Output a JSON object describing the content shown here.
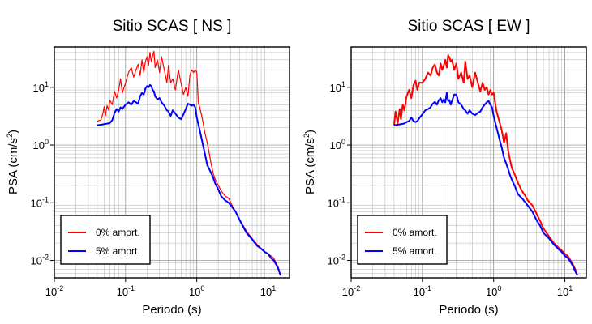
{
  "colors": {
    "series_0": "#ff0000",
    "series_5": "#0000ff",
    "grid": "#808080",
    "frame": "#000000"
  },
  "chart_data": [
    {
      "type": "line",
      "title": "Sitio SCAS [ NS ]",
      "xlabel": "Periodo (s)",
      "ylabel_main": "PSA (cm/s",
      "ylabel_exp": "2",
      "ylabel_close": ")",
      "xscale": "log",
      "yscale": "log",
      "xlim": [
        0.01,
        20
      ],
      "ylim": [
        0.005,
        50
      ],
      "grid": true,
      "xticks": [
        {
          "base": "10",
          "exp": "-2",
          "v": 0.01
        },
        {
          "base": "10",
          "exp": "-1",
          "v": 0.1
        },
        {
          "base": "10",
          "exp": "0",
          "v": 1
        },
        {
          "base": "10",
          "exp": "1",
          "v": 10
        }
      ],
      "yticks": [
        {
          "base": "10",
          "exp": "-2",
          "v": 0.01
        },
        {
          "base": "10",
          "exp": "-1",
          "v": 0.1
        },
        {
          "base": "10",
          "exp": "0",
          "v": 1
        },
        {
          "base": "10",
          "exp": "1",
          "v": 10
        }
      ],
      "legend_position": "bottom-left",
      "series": [
        {
          "name": "0% amort.",
          "color": "#ff0000",
          "width": 1.2,
          "x": [
            0.04,
            0.045,
            0.048,
            0.05,
            0.052,
            0.055,
            0.058,
            0.06,
            0.065,
            0.07,
            0.075,
            0.08,
            0.085,
            0.09,
            0.1,
            0.11,
            0.12,
            0.13,
            0.14,
            0.15,
            0.16,
            0.17,
            0.18,
            0.19,
            0.2,
            0.21,
            0.22,
            0.23,
            0.24,
            0.25,
            0.26,
            0.28,
            0.3,
            0.32,
            0.35,
            0.38,
            0.4,
            0.43,
            0.46,
            0.5,
            0.55,
            0.6,
            0.65,
            0.7,
            0.75,
            0.8,
            0.85,
            0.9,
            0.95,
            1.0,
            1.05,
            1.1,
            1.2,
            1.3,
            1.4,
            1.5,
            1.6,
            1.7,
            1.8,
            2.0,
            2.2,
            2.5,
            2.8,
            3.0,
            3.2,
            3.5,
            4.0,
            4.5,
            5,
            6,
            7,
            8,
            9,
            10,
            11,
            12,
            13,
            14,
            15
          ],
          "y": [
            2.6,
            2.7,
            3.5,
            4.6,
            3.2,
            4.8,
            4.0,
            6.0,
            5.0,
            8.5,
            6.5,
            9.0,
            14.0,
            8.0,
            12.0,
            18.0,
            22.0,
            15.0,
            20.0,
            25.0,
            16.0,
            30.0,
            18.0,
            28.0,
            34.0,
            24.0,
            40.0,
            28.0,
            35.0,
            42.0,
            22.0,
            30.0,
            18.0,
            34.0,
            20.0,
            12.0,
            24.0,
            12.0,
            14.0,
            9.0,
            20.0,
            12.0,
            7.5,
            10.0,
            7.0,
            16.0,
            20.0,
            18.0,
            20.0,
            18.0,
            5.5,
            4.5,
            2.8,
            1.6,
            1.1,
            0.7,
            0.45,
            0.32,
            0.26,
            0.2,
            0.16,
            0.13,
            0.12,
            0.1,
            0.085,
            0.07,
            0.05,
            0.04,
            0.032,
            0.024,
            0.019,
            0.016,
            0.014,
            0.013,
            0.012,
            0.011,
            0.009,
            0.0075,
            0.0055
          ]
        },
        {
          "name": "5% amort.",
          "color": "#0000ff",
          "width": 2.0,
          "x": [
            0.04,
            0.045,
            0.05,
            0.055,
            0.06,
            0.065,
            0.07,
            0.075,
            0.08,
            0.085,
            0.09,
            0.1,
            0.11,
            0.12,
            0.13,
            0.14,
            0.15,
            0.16,
            0.17,
            0.18,
            0.19,
            0.2,
            0.21,
            0.22,
            0.23,
            0.24,
            0.25,
            0.26,
            0.28,
            0.3,
            0.32,
            0.35,
            0.38,
            0.4,
            0.43,
            0.46,
            0.5,
            0.55,
            0.6,
            0.65,
            0.7,
            0.75,
            0.8,
            0.85,
            0.9,
            0.95,
            1.0,
            1.1,
            1.2,
            1.3,
            1.4,
            1.5,
            1.6,
            1.7,
            1.8,
            2.0,
            2.2,
            2.5,
            2.8,
            3.0,
            3.5,
            4.0,
            4.5,
            5,
            6,
            7,
            8,
            9,
            10,
            11,
            12,
            13,
            14,
            15
          ],
          "y": [
            2.2,
            2.25,
            2.3,
            2.35,
            2.4,
            2.7,
            3.6,
            4.2,
            3.8,
            4.5,
            4.2,
            5.0,
            5.5,
            5.0,
            5.8,
            5.5,
            5.2,
            7.0,
            8.0,
            7.5,
            9.5,
            10.5,
            10.0,
            11.0,
            10.5,
            9.0,
            8.5,
            7.0,
            6.2,
            6.5,
            5.5,
            4.8,
            4.0,
            3.8,
            3.2,
            4.0,
            3.5,
            3.0,
            2.8,
            3.4,
            4.2,
            5.2,
            5.0,
            4.8,
            5.0,
            4.5,
            3.0,
            1.8,
            1.1,
            0.7,
            0.45,
            0.38,
            0.32,
            0.27,
            0.22,
            0.17,
            0.13,
            0.11,
            0.1,
            0.09,
            0.07,
            0.05,
            0.038,
            0.03,
            0.023,
            0.018,
            0.016,
            0.014,
            0.013,
            0.011,
            0.01,
            0.0085,
            0.007,
            0.0055
          ]
        }
      ]
    },
    {
      "type": "line",
      "title": "Sitio SCAS [ EW ]",
      "xlabel": "Periodo (s)",
      "ylabel_main": "PSA (cm/s",
      "ylabel_exp": "2",
      "ylabel_close": ")",
      "xscale": "log",
      "yscale": "log",
      "xlim": [
        0.01,
        20
      ],
      "ylim": [
        0.005,
        50
      ],
      "grid": true,
      "xticks": [
        {
          "base": "10",
          "exp": "-2",
          "v": 0.01
        },
        {
          "base": "10",
          "exp": "-1",
          "v": 0.1
        },
        {
          "base": "10",
          "exp": "0",
          "v": 1
        },
        {
          "base": "10",
          "exp": "1",
          "v": 10
        }
      ],
      "yticks": [
        {
          "base": "10",
          "exp": "-2",
          "v": 0.01
        },
        {
          "base": "10",
          "exp": "-1",
          "v": 0.1
        },
        {
          "base": "10",
          "exp": "0",
          "v": 1
        },
        {
          "base": "10",
          "exp": "1",
          "v": 10
        }
      ],
      "legend_position": "bottom-left",
      "series": [
        {
          "name": "0% amort.",
          "color": "#ff0000",
          "width": 2.0,
          "x": [
            0.04,
            0.042,
            0.045,
            0.048,
            0.05,
            0.053,
            0.056,
            0.06,
            0.065,
            0.07,
            0.075,
            0.08,
            0.085,
            0.09,
            0.1,
            0.11,
            0.12,
            0.13,
            0.14,
            0.15,
            0.16,
            0.17,
            0.18,
            0.19,
            0.2,
            0.21,
            0.22,
            0.23,
            0.24,
            0.25,
            0.26,
            0.28,
            0.3,
            0.32,
            0.35,
            0.38,
            0.4,
            0.43,
            0.46,
            0.5,
            0.55,
            0.6,
            0.65,
            0.7,
            0.75,
            0.8,
            0.85,
            0.9,
            0.95,
            1.0,
            1.1,
            1.2,
            1.3,
            1.4,
            1.5,
            1.6,
            1.7,
            1.8,
            2.0,
            2.2,
            2.5,
            2.8,
            3.0,
            3.5,
            4.0,
            4.5,
            5,
            6,
            7,
            8,
            9,
            10,
            11,
            12,
            13,
            14,
            15
          ],
          "y": [
            2.2,
            3.8,
            2.4,
            4.2,
            2.8,
            5.0,
            4.0,
            7.0,
            9.0,
            6.5,
            11.0,
            13.0,
            9.0,
            12.0,
            12.0,
            14.0,
            18.0,
            16.0,
            22.0,
            25.0,
            18.0,
            16.0,
            26.0,
            20.0,
            24.0,
            30.0,
            22.0,
            36.0,
            33.0,
            28.0,
            30.0,
            20.0,
            26.0,
            14.0,
            18.0,
            12.0,
            28.0,
            14.0,
            16.0,
            10.0,
            18.0,
            12.0,
            8.5,
            12.0,
            9.0,
            10.0,
            7.5,
            9.0,
            7.5,
            8.0,
            3.8,
            2.6,
            1.8,
            1.1,
            1.6,
            0.8,
            0.55,
            0.4,
            0.3,
            0.22,
            0.16,
            0.13,
            0.11,
            0.09,
            0.065,
            0.048,
            0.036,
            0.026,
            0.02,
            0.017,
            0.015,
            0.013,
            0.012,
            0.01,
            0.0085,
            0.007,
            0.0055
          ]
        },
        {
          "name": "5% amort.",
          "color": "#0000ff",
          "width": 2.0,
          "x": [
            0.04,
            0.045,
            0.05,
            0.055,
            0.06,
            0.065,
            0.07,
            0.075,
            0.08,
            0.085,
            0.09,
            0.1,
            0.11,
            0.12,
            0.13,
            0.14,
            0.15,
            0.16,
            0.17,
            0.18,
            0.19,
            0.2,
            0.21,
            0.22,
            0.23,
            0.24,
            0.25,
            0.26,
            0.28,
            0.3,
            0.32,
            0.35,
            0.38,
            0.4,
            0.43,
            0.46,
            0.5,
            0.55,
            0.6,
            0.65,
            0.7,
            0.75,
            0.8,
            0.85,
            0.9,
            0.95,
            1.0,
            1.1,
            1.2,
            1.3,
            1.4,
            1.5,
            1.6,
            1.7,
            1.8,
            2.0,
            2.2,
            2.5,
            2.8,
            3.0,
            3.5,
            4.0,
            4.5,
            5,
            6,
            7,
            8,
            9,
            10,
            11,
            12,
            13,
            14,
            15
          ],
          "y": [
            2.2,
            2.25,
            2.3,
            2.35,
            2.5,
            2.6,
            3.0,
            2.6,
            2.5,
            2.6,
            2.9,
            3.4,
            4.0,
            4.2,
            4.5,
            5.2,
            5.6,
            5.0,
            6.0,
            6.5,
            5.5,
            6.2,
            5.5,
            8.0,
            5.8,
            6.0,
            5.0,
            5.8,
            7.5,
            7.5,
            5.5,
            5.0,
            4.2,
            4.0,
            3.5,
            4.0,
            3.5,
            3.3,
            3.6,
            3.8,
            4.5,
            5.0,
            5.5,
            5.8,
            5.0,
            4.5,
            3.2,
            2.0,
            1.3,
            0.9,
            0.6,
            0.48,
            0.38,
            0.3,
            0.25,
            0.19,
            0.14,
            0.12,
            0.1,
            0.09,
            0.07,
            0.05,
            0.04,
            0.03,
            0.024,
            0.019,
            0.016,
            0.014,
            0.012,
            0.011,
            0.0095,
            0.008,
            0.0065,
            0.0055
          ]
        }
      ]
    }
  ]
}
